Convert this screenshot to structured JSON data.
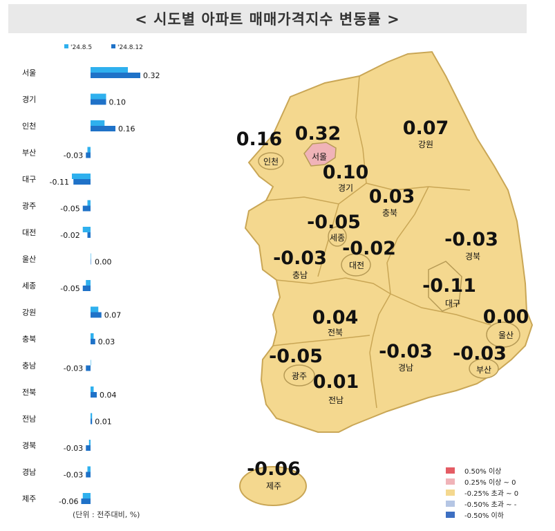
{
  "title": "< 시도별 아파트 매매가격지수 변동률 >",
  "unit_note": "(단위 : 전주대비, %)",
  "chart_data": {
    "type": "bar",
    "orientation": "horizontal",
    "legend": [
      "'24.8.5",
      "'24.8.12"
    ],
    "legend_placement": "top-left",
    "categories": [
      "서울",
      "경기",
      "인천",
      "부산",
      "대구",
      "광주",
      "대전",
      "울산",
      "세종",
      "강원",
      "충북",
      "충남",
      "전북",
      "전남",
      "경북",
      "경남",
      "제주"
    ],
    "series": [
      {
        "name": "'24.8.5",
        "color": "#2fb0ee",
        "values": [
          0.24,
          0.1,
          0.09,
          -0.02,
          -0.12,
          -0.02,
          -0.05,
          0.0,
          -0.03,
          0.05,
          0.02,
          0.0,
          0.02,
          0.01,
          -0.01,
          -0.02,
          -0.05
        ]
      },
      {
        "name": "'24.8.12",
        "color": "#1f72c8",
        "values": [
          0.32,
          0.1,
          0.16,
          -0.03,
          -0.11,
          -0.05,
          -0.02,
          0.0,
          -0.05,
          0.07,
          0.03,
          -0.03,
          0.04,
          0.01,
          -0.03,
          -0.03,
          -0.06
        ]
      }
    ],
    "value_labels": [
      "0.32",
      "0.10",
      "0.16",
      "-0.03",
      "-0.11",
      "-0.05",
      "-0.02",
      "0.00",
      "-0.05",
      "0.07",
      "0.03",
      "-0.03",
      "0.04",
      "0.01",
      "-0.03",
      "-0.03",
      "-0.06"
    ]
  },
  "map": {
    "regions": [
      {
        "name": "서울",
        "value": "0.32"
      },
      {
        "name": "인천",
        "value": "0.16"
      },
      {
        "name": "경기",
        "value": "0.10"
      },
      {
        "name": "강원",
        "value": "0.07"
      },
      {
        "name": "충북",
        "value": "0.03"
      },
      {
        "name": "세종",
        "value": "-0.05"
      },
      {
        "name": "충남",
        "value": "-0.03"
      },
      {
        "name": "대전",
        "value": "-0.02"
      },
      {
        "name": "경북",
        "value": "-0.03"
      },
      {
        "name": "대구",
        "value": "-0.11"
      },
      {
        "name": "울산",
        "value": "0.00"
      },
      {
        "name": "전북",
        "value": "0.04"
      },
      {
        "name": "경남",
        "value": "-0.03"
      },
      {
        "name": "부산",
        "value": "-0.03"
      },
      {
        "name": "광주",
        "value": "-0.05"
      },
      {
        "name": "전남",
        "value": "0.01"
      },
      {
        "name": "제주",
        "value": "-0.06"
      }
    ],
    "colors": {
      "land": "#f4d88f",
      "border": "#c9a655",
      "seoul": "#f0b3b8"
    }
  },
  "legend_map": [
    {
      "label": "0.50% 이상",
      "color": "#e45c64"
    },
    {
      "label": "0.25% 이상 ~ 0",
      "color": "#f0b3b8"
    },
    {
      "label": "-0.25% 초과 ~ 0",
      "color": "#f4d88f"
    },
    {
      "label": "-0.50% 초과 ~ -",
      "color": "#b5c6e4"
    },
    {
      "label": "-0.50% 이하",
      "color": "#3d6fc2"
    }
  ]
}
